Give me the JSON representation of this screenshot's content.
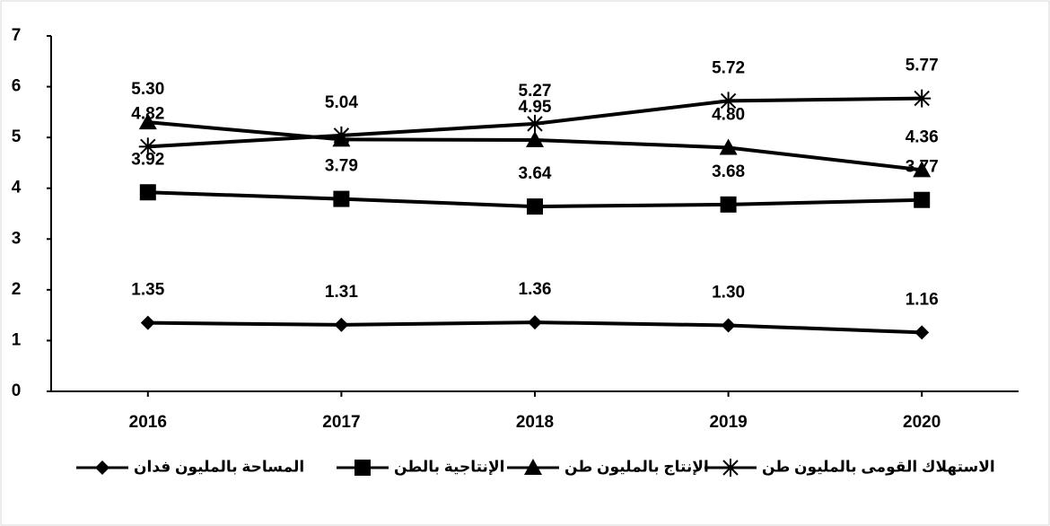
{
  "chart_data": {
    "type": "line",
    "categories": [
      "2016",
      "2017",
      "2018",
      "2019",
      "2020"
    ],
    "ylim": [
      0,
      7
    ],
    "yticks": [
      0,
      1,
      2,
      3,
      4,
      5,
      6,
      7
    ],
    "series": [
      {
        "name": "المساحة بالمليون فدان",
        "color": "#000000",
        "marker": "diamond",
        "values": [
          1.35,
          1.31,
          1.36,
          1.3,
          1.16
        ],
        "value_labels": [
          "1.35",
          "1.31",
          "1.36",
          "1.30",
          "1.16"
        ]
      },
      {
        "name": "الإنتاجية بالطن",
        "color": "#000000",
        "marker": "square",
        "values": [
          3.92,
          3.79,
          3.64,
          3.68,
          3.77
        ],
        "value_labels": [
          "3.92",
          "3.79",
          "3.64",
          "3.68",
          "3.77"
        ]
      },
      {
        "name": "الإنتاج بالمليون طن",
        "color": "#000000",
        "marker": "triangle",
        "values": [
          5.3,
          4.96,
          4.95,
          4.8,
          4.36
        ],
        "value_labels": [
          "5.30",
          null,
          "4.95",
          "4.80",
          "4.36"
        ]
      },
      {
        "name": "الاستهلاك القومى بالمليون طن",
        "color": "#000000",
        "marker": "star",
        "values": [
          4.82,
          5.04,
          5.27,
          5.72,
          5.77
        ],
        "value_labels": [
          "4.82",
          "5.04",
          "5.27",
          "5.72",
          "5.77"
        ]
      }
    ]
  }
}
